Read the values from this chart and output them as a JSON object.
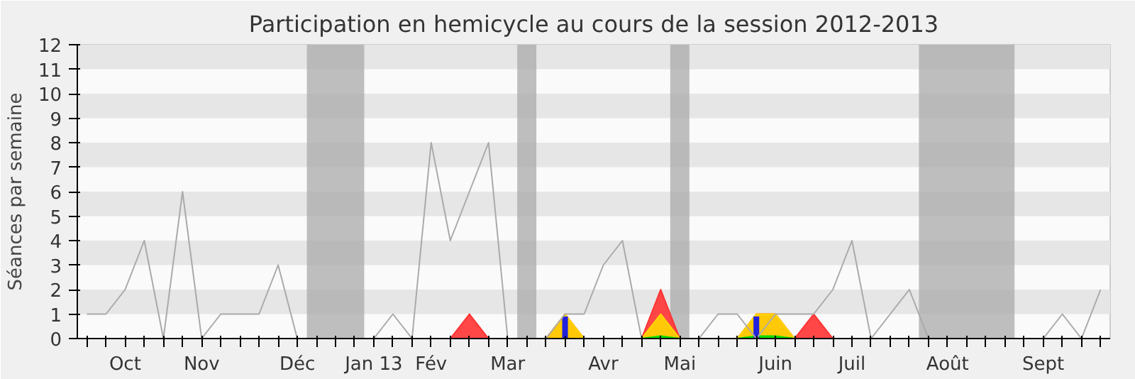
{
  "chart_data": {
    "type": "line",
    "title": "Participation en hemicycle au cours de la session 2012-2013",
    "ylabel": "Séances par semaine",
    "categories": [
      null,
      null,
      "Oct",
      null,
      null,
      null,
      "Nov",
      null,
      null,
      null,
      null,
      "Déc",
      null,
      null,
      null,
      "Jan 13",
      null,
      null,
      "Fév",
      null,
      null,
      null,
      "Mar",
      null,
      null,
      null,
      null,
      "Avr",
      null,
      null,
      null,
      "Mai",
      null,
      null,
      null,
      null,
      "Juin",
      null,
      null,
      null,
      "Juil",
      null,
      null,
      null,
      null,
      "Août",
      null,
      null,
      null,
      null,
      "Sept",
      null,
      null,
      null
    ],
    "ylim": [
      0,
      12
    ],
    "yticks": [
      0,
      1,
      2,
      3,
      4,
      5,
      6,
      7,
      8,
      9,
      10,
      11,
      12
    ],
    "series": [
      {
        "type": "area",
        "color": "#ff3333",
        "values": [
          0,
          0,
          0,
          0,
          0,
          0,
          0,
          0,
          0,
          0,
          0,
          0,
          0,
          0,
          0,
          0,
          0,
          0,
          0,
          0,
          1,
          0,
          0,
          0,
          0,
          1,
          0,
          0,
          0,
          0,
          2,
          0,
          0,
          0,
          0,
          1,
          1,
          0,
          1,
          0,
          0,
          0,
          0,
          0,
          0,
          0,
          0,
          0,
          0,
          0,
          0,
          0,
          0,
          0
        ]
      },
      {
        "type": "area",
        "color": "#ffd700",
        "values": [
          0,
          0,
          0,
          0,
          0,
          0,
          0,
          0,
          0,
          0,
          0,
          0,
          0,
          0,
          0,
          0,
          0,
          0,
          0,
          0,
          0,
          0,
          0,
          0,
          0,
          1,
          0,
          0,
          0,
          0,
          1,
          0,
          0,
          0,
          0,
          1,
          1,
          0,
          0,
          0,
          0,
          0,
          0,
          0,
          0,
          0,
          0,
          0,
          0,
          0,
          0,
          0,
          0,
          0
        ]
      },
      {
        "type": "area",
        "color": "#00dd00",
        "values": [
          0,
          0,
          0,
          0,
          0,
          0,
          0,
          0,
          0,
          0,
          0,
          0,
          0,
          0,
          0,
          0,
          0,
          0,
          0,
          0,
          0,
          0,
          0,
          0,
          0,
          0,
          0,
          0,
          0,
          0,
          0.1,
          0,
          0,
          0,
          0,
          0.1,
          0.1,
          0,
          0,
          0,
          0,
          0,
          0,
          0,
          0,
          0,
          0,
          0,
          0,
          0,
          0,
          0,
          0,
          0
        ]
      },
      {
        "type": "bar",
        "color": "#2222dd",
        "values": [
          0,
          0,
          0,
          0,
          0,
          0,
          0,
          0,
          0,
          0,
          0,
          0,
          0,
          0,
          0,
          0,
          0,
          0,
          0,
          0,
          0,
          0,
          0,
          0,
          0,
          0.9,
          0,
          0,
          0,
          0,
          0,
          0,
          0,
          0,
          0,
          0.9,
          0,
          0,
          0,
          0,
          0,
          0,
          0,
          0,
          0,
          0,
          0,
          0,
          0,
          0,
          0,
          0,
          0,
          0
        ]
      },
      {
        "color": "#aaaaaa",
        "values": [
          1,
          1,
          2,
          4,
          0,
          6,
          0,
          1,
          1,
          1,
          3,
          0,
          0,
          0,
          0,
          0,
          1,
          0,
          8,
          4,
          6,
          8,
          0,
          0,
          0,
          1,
          1,
          3,
          4,
          0,
          0,
          0,
          0,
          1,
          1,
          0,
          1,
          1,
          1,
          2,
          4,
          0,
          1,
          2,
          0,
          0,
          0,
          0,
          0,
          0,
          0,
          1,
          0,
          2
        ]
      }
    ]
  }
}
